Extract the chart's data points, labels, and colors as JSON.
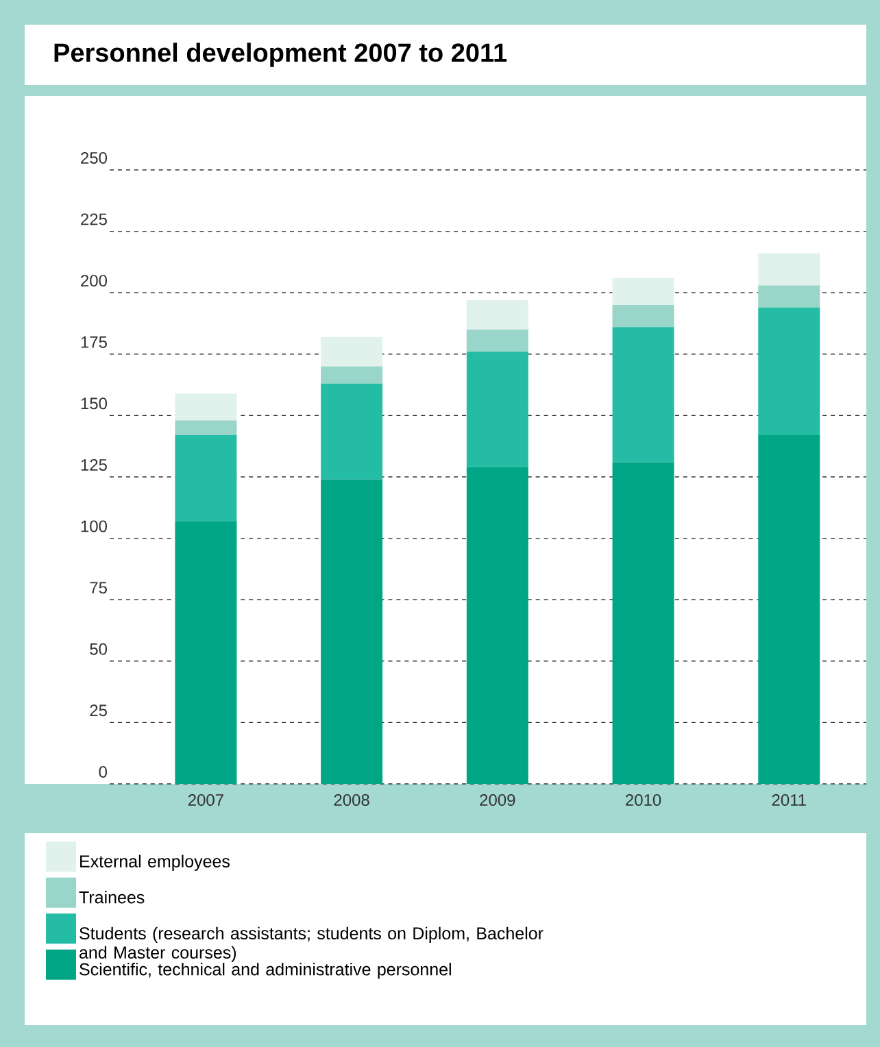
{
  "chart_data": {
    "type": "bar",
    "title": "Personnel development 2007 to 2011",
    "stacked": true,
    "categories": [
      "2007",
      "2008",
      "2009",
      "2010",
      "2011"
    ],
    "series": [
      {
        "name": "Scientific, technical and administrative personnel",
        "color": "#00a685",
        "values": [
          107,
          124,
          129,
          131,
          142
        ]
      },
      {
        "name": "Students (research assistants; students on Diplom, Bachelor and Master courses)",
        "color": "#25bca5",
        "values": [
          35,
          39,
          47,
          55,
          52
        ]
      },
      {
        "name": "Trainees",
        "color": "#99d5c9",
        "values": [
          6,
          7,
          9,
          9,
          9
        ]
      },
      {
        "name": "External employees",
        "color": "#e1f2ed",
        "values": [
          11,
          12,
          12,
          11,
          13
        ]
      }
    ],
    "ylim": [
      0,
      250
    ],
    "yticks": [
      0,
      25,
      50,
      75,
      100,
      125,
      150,
      175,
      200,
      225,
      250
    ],
    "grid": "y",
    "legend": "bottom"
  }
}
